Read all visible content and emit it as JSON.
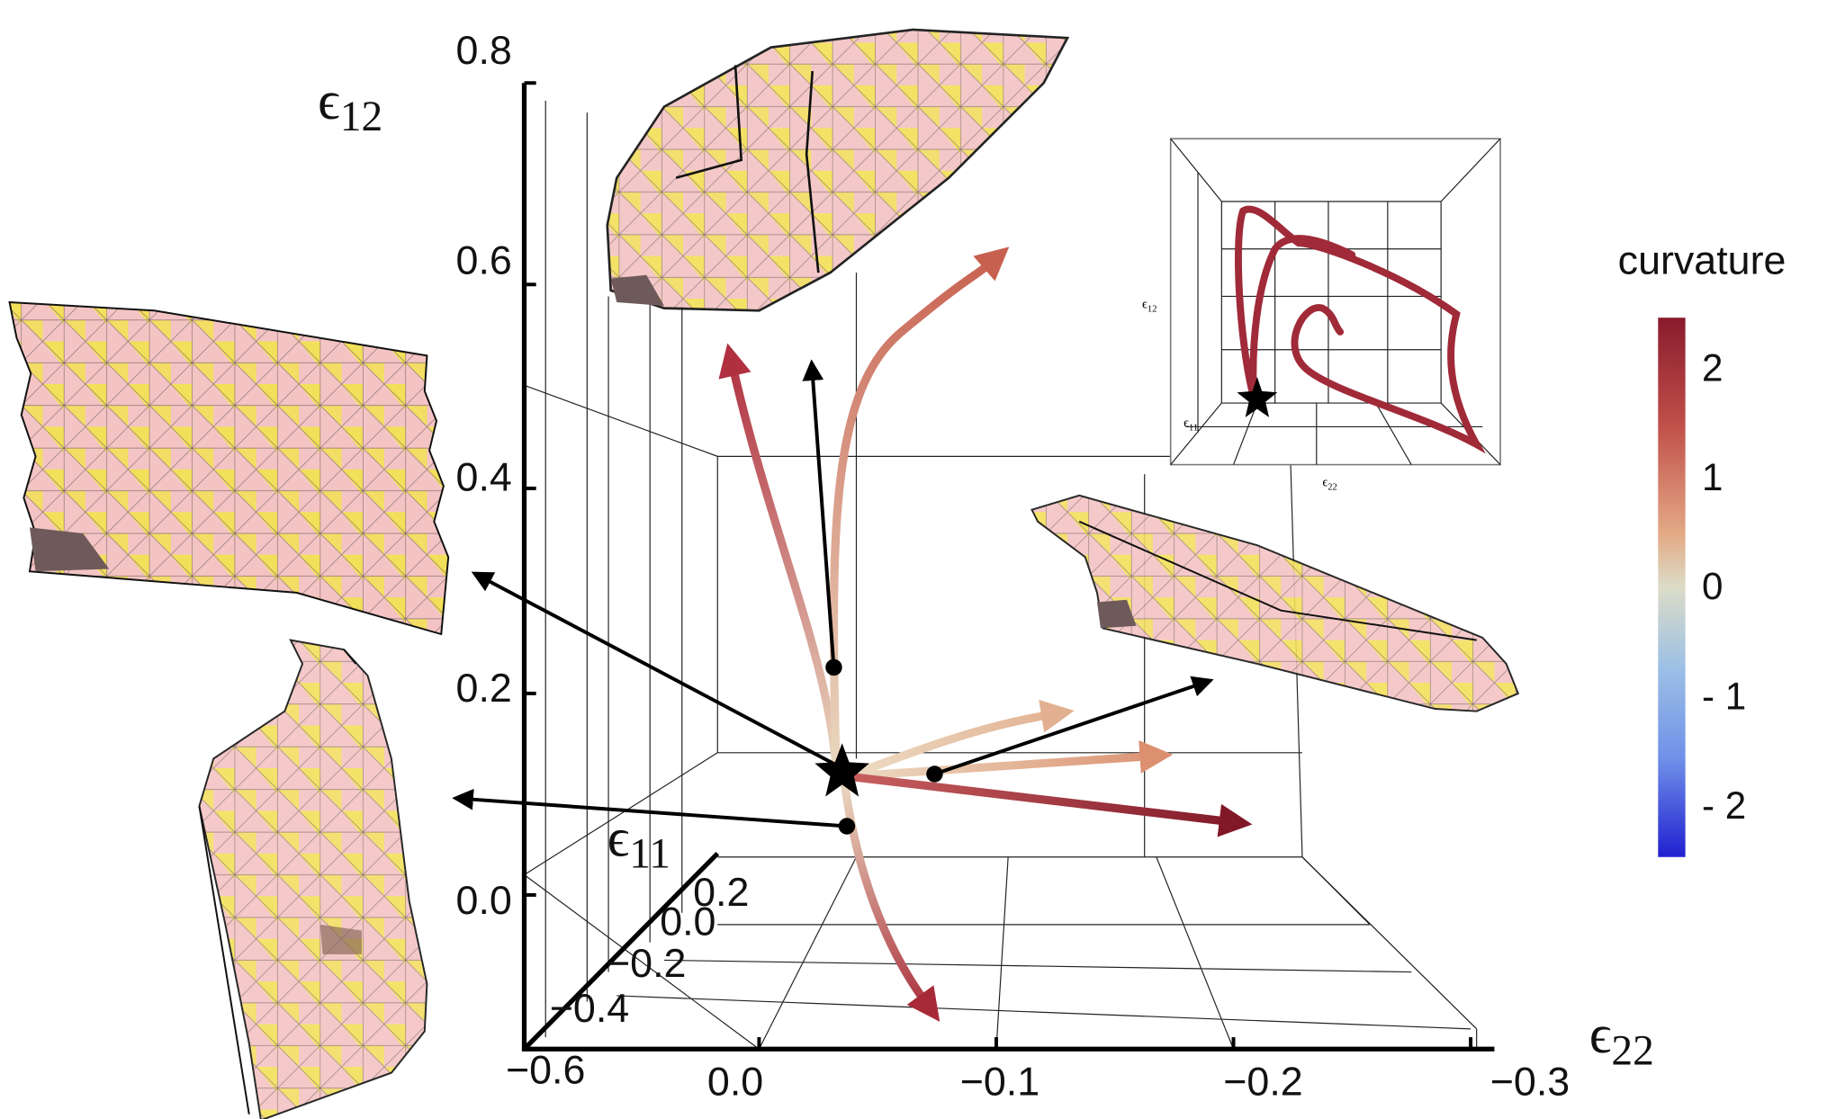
{
  "axes": {
    "z": {
      "label": {
        "symbol": "ϵ",
        "subscript": "12"
      },
      "ticks": [
        "0.8",
        "0.6",
        "0.4",
        "0.2",
        "0.0"
      ]
    },
    "x": {
      "label": {
        "symbol": "ϵ",
        "subscript": "22"
      },
      "ticks": [
        "0.0",
        "−0.1",
        "−0.2",
        "−0.3"
      ]
    },
    "y": {
      "label": {
        "symbol": "ϵ",
        "subscript": "11"
      },
      "ticks": [
        "0.2",
        "0.0",
        "−0.2",
        "−0.4",
        "−0.6"
      ]
    }
  },
  "colorbar": {
    "title": "curvature",
    "ticks": [
      "2",
      "1",
      "0",
      "- 1",
      "- 2"
    ]
  },
  "inset": {
    "labels": [
      {
        "symbol": "ϵ",
        "subscript": "12"
      },
      {
        "symbol": "ϵ",
        "subscript": "11"
      },
      {
        "symbol": "ϵ",
        "subscript": "22"
      }
    ]
  }
}
